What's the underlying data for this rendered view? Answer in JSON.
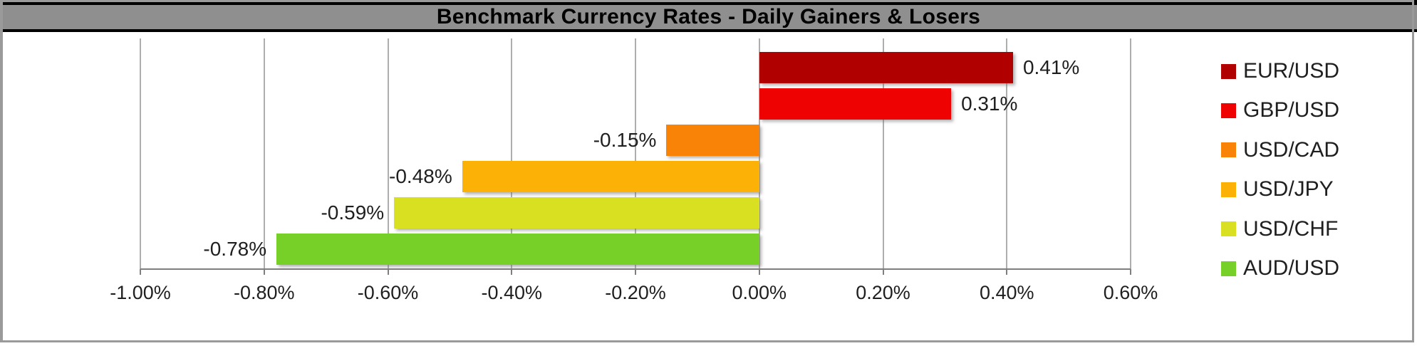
{
  "title_bar": {
    "text": "Benchmark Currency Rates - Daily Gainers & Losers",
    "bg_color": "#8f8f8f",
    "text_color": "#000000",
    "border_color": "#000000"
  },
  "chart_data": {
    "type": "bar",
    "orientation": "horizontal",
    "title": "Benchmark Currency Rates - Daily Gainers & Losers",
    "series": [
      {
        "name": "EUR/USD",
        "value": 0.41,
        "label": "0.41%",
        "color": "#b00000"
      },
      {
        "name": "GBP/USD",
        "value": 0.31,
        "label": "0.31%",
        "color": "#ee0202"
      },
      {
        "name": "USD/CAD",
        "value": -0.15,
        "label": "-0.15%",
        "color": "#f98307"
      },
      {
        "name": "USD/JPY",
        "value": -0.48,
        "label": "-0.48%",
        "color": "#fbb105"
      },
      {
        "name": "USD/CHF",
        "value": -0.59,
        "label": "-0.59%",
        "color": "#d9e021"
      },
      {
        "name": "AUD/USD",
        "value": -0.78,
        "label": "-0.78%",
        "color": "#76d028"
      }
    ],
    "x_axis": {
      "min": -1.0,
      "max": 0.6,
      "step": 0.2,
      "unit": "%",
      "tick_labels": [
        "-1.00%",
        "-0.80%",
        "-0.60%",
        "-0.40%",
        "-0.20%",
        "0.00%",
        "0.20%",
        "0.40%",
        "0.60%"
      ]
    },
    "grid": true,
    "data_labels": true,
    "legend_position": "right"
  },
  "colors": {
    "grid": "#aeaeae",
    "axis": "#7f7f7f",
    "frame": "#9a9a9a",
    "label_text": "#1f1f1f"
  }
}
